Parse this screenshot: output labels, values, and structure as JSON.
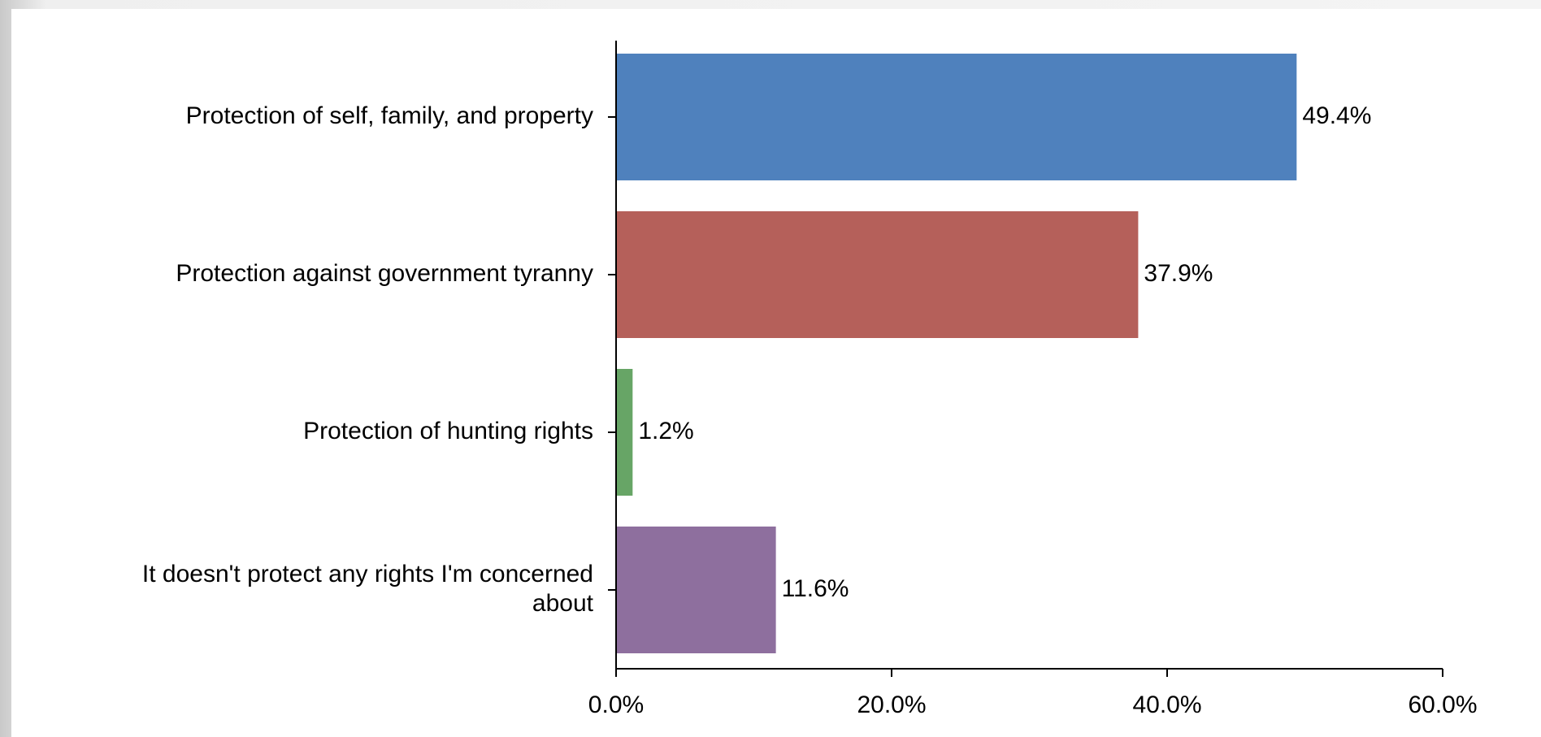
{
  "chart_data": {
    "type": "bar",
    "orientation": "horizontal",
    "title": "",
    "xlabel": "",
    "ylabel": "",
    "categories": [
      [
        "Protection of self, family, and property"
      ],
      [
        "Protection against government tyranny"
      ],
      [
        "Protection of hunting rights"
      ],
      [
        "It doesn't protect any rights I'm concerned",
        "about"
      ]
    ],
    "values": [
      49.4,
      37.9,
      1.2,
      11.6
    ],
    "value_labels": [
      "49.4%",
      "37.9%",
      "1.2%",
      "11.6%"
    ],
    "colors": [
      "#4f81bd",
      "#b5605a",
      "#67a566",
      "#8e6f9e"
    ],
    "xlim": [
      0,
      60
    ],
    "x_ticks": [
      0,
      20,
      40,
      60
    ],
    "x_tick_labels": [
      "0.0%",
      "20.0%",
      "40.0%",
      "60.0%"
    ],
    "grid": false,
    "legend": "none"
  }
}
